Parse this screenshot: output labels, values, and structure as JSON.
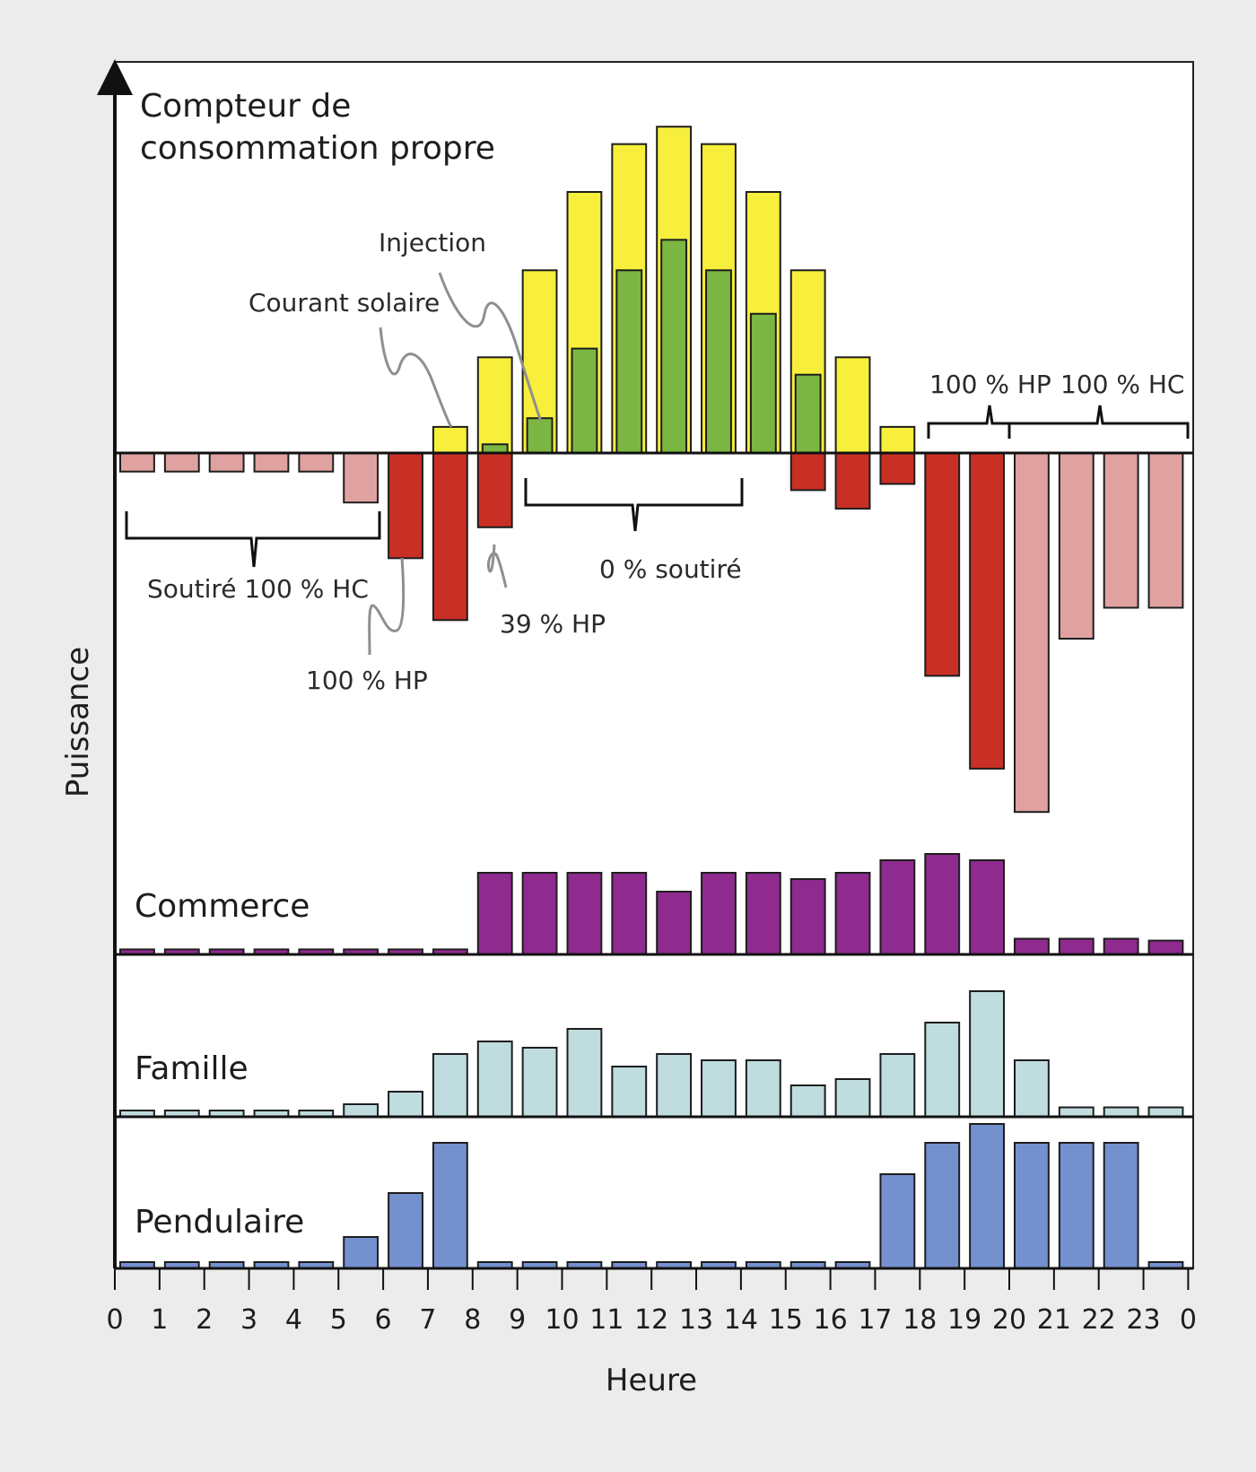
{
  "colors": {
    "background": "#ececec",
    "plot_background": "#ffffff",
    "solar": "#f7ef3b",
    "self_consumption": "#7bb642",
    "import_high_tariff": "#c93025",
    "import_low_tariff": "#e0a2a1",
    "commerce": "#8f2a8f",
    "family": "#bfdcdf",
    "commuter": "#7590cf",
    "outline": "#1d1d1d",
    "annotation_line": "#8f8f8f"
  },
  "chart_data": {
    "type": "bar",
    "xlabel": "Heure",
    "ylabel": "Puissance",
    "x_ticks": [
      "0",
      "1",
      "2",
      "3",
      "4",
      "5",
      "6",
      "7",
      "8",
      "9",
      "10",
      "11",
      "12",
      "13",
      "14",
      "15",
      "16",
      "17",
      "18",
      "19",
      "20",
      "21",
      "22",
      "23",
      "0"
    ],
    "panels": [
      {
        "id": "self_consumption_meter",
        "title_lines": [
          "Compteur de",
          "consommation propre"
        ],
        "solar": [
          0,
          0,
          0,
          0,
          0,
          0,
          0,
          0.6,
          2.2,
          4.2,
          6.0,
          7.1,
          7.5,
          7.1,
          6.0,
          4.2,
          2.2,
          0.6,
          0,
          0,
          0,
          0,
          0,
          0
        ],
        "self_consumption": [
          0,
          0,
          0,
          0,
          0,
          0,
          0,
          0,
          0.2,
          0.8,
          2.4,
          4.2,
          4.9,
          4.2,
          3.2,
          1.8,
          0,
          0,
          0,
          0,
          0,
          0,
          0,
          0
        ],
        "grid_import": [
          0.3,
          0.3,
          0.3,
          0.3,
          0.3,
          0.8,
          1.7,
          2.7,
          1.2,
          0,
          0,
          0,
          0,
          0,
          0,
          0.6,
          0.9,
          0.5,
          3.6,
          5.1,
          5.8,
          3.0,
          2.5,
          2.5
        ],
        "grid_import_type": [
          "HC",
          "HC",
          "HC",
          "HC",
          "HC",
          "HC",
          "HP",
          "HP",
          "HP",
          "HP",
          "HP",
          "HP",
          "HP",
          "HP",
          "HP",
          "HP",
          "HP",
          "HP",
          "HP",
          "HP",
          "HC",
          "HC",
          "HC",
          "HC"
        ],
        "labels": {
          "injection": "Injection",
          "solar_power": "Courant solaire",
          "low_tariff_draw": "Soutiré 100 % HC",
          "high_tariff_draw": "100 % HP",
          "partial_high_tariff": "39 % HP",
          "zero_draw": "0 % soutiré",
          "evening_high_tariff": "100 % HP",
          "evening_low_tariff": "100 % HC"
        }
      },
      {
        "id": "commerce",
        "title": "Commerce",
        "values": [
          0.08,
          0.08,
          0.08,
          0.08,
          0.08,
          0.08,
          0.08,
          0.08,
          1.3,
          1.3,
          1.3,
          1.3,
          1.0,
          1.3,
          1.3,
          1.2,
          1.3,
          1.5,
          1.6,
          1.5,
          0.25,
          0.25,
          0.25,
          0.22
        ]
      },
      {
        "id": "family",
        "title": "Famille",
        "values": [
          0.1,
          0.1,
          0.1,
          0.1,
          0.1,
          0.2,
          0.4,
          1.0,
          1.2,
          1.1,
          1.4,
          0.8,
          1.0,
          0.9,
          0.9,
          0.5,
          0.6,
          1.0,
          1.5,
          2.0,
          0.9,
          0.15,
          0.15,
          0.15
        ]
      },
      {
        "id": "commuter",
        "title": "Pendulaire",
        "values": [
          0.1,
          0.1,
          0.1,
          0.1,
          0.1,
          0.5,
          1.2,
          2.0,
          0.1,
          0.1,
          0.1,
          0.1,
          0.1,
          0.1,
          0.1,
          0.1,
          0.1,
          1.5,
          2.0,
          2.3,
          2.0,
          2.0,
          2.0,
          0.1
        ]
      }
    ]
  }
}
